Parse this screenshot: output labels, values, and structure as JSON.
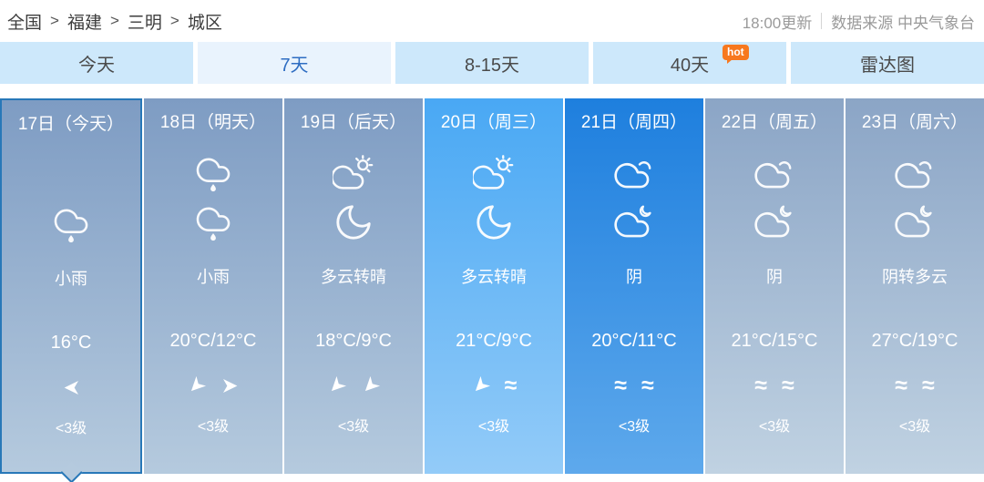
{
  "breadcrumb": {
    "items": [
      "全国",
      "福建",
      "三明",
      "城区"
    ],
    "separator": ">"
  },
  "meta": {
    "update_time": "18:00更新",
    "source": "数据来源 中央气象台"
  },
  "tabs": [
    {
      "label": "今天"
    },
    {
      "label": "7天",
      "selected": true
    },
    {
      "label": "8-15天"
    },
    {
      "label": "40天",
      "badge": "hot"
    },
    {
      "label": "雷达图"
    }
  ],
  "forecast": {
    "days": [
      {
        "date": "17日（今天）",
        "day_icon": null,
        "night_icon": "rain",
        "desc": "小雨",
        "temp": "16°C",
        "wind_icons": [
          {
            "type": "arrow",
            "rotation": 180
          }
        ],
        "wind_level": "<3级",
        "theme": "steel",
        "selected": true
      },
      {
        "date": "18日（明天）",
        "day_icon": "rain",
        "night_icon": "rain",
        "desc": "小雨",
        "temp": "20°C/12°C",
        "wind_icons": [
          {
            "type": "arrow",
            "rotation": 135
          },
          {
            "type": "arrow",
            "rotation": 0
          }
        ],
        "wind_level": "<3级",
        "theme": "steel",
        "selected": false
      },
      {
        "date": "19日（后天）",
        "day_icon": "sun-cloud",
        "night_icon": "moon",
        "desc": "多云转晴",
        "temp": "18°C/9°C",
        "wind_icons": [
          {
            "type": "arrow",
            "rotation": 135
          },
          {
            "type": "arrow",
            "rotation": 135
          }
        ],
        "wind_level": "<3级",
        "theme": "steel",
        "selected": false
      },
      {
        "date": "20日（周三）",
        "day_icon": "sun-cloud",
        "night_icon": "moon",
        "desc": "多云转晴",
        "temp": "21°C/9°C",
        "wind_icons": [
          {
            "type": "arrow",
            "rotation": 135
          },
          {
            "type": "wave"
          }
        ],
        "wind_level": "<3级",
        "theme": "sky",
        "selected": false
      },
      {
        "date": "21日（周四）",
        "day_icon": "cloud",
        "night_icon": "moon-cloud",
        "desc": "阴",
        "temp": "20°C/11°C",
        "wind_icons": [
          {
            "type": "wave"
          },
          {
            "type": "wave"
          }
        ],
        "wind_level": "<3级",
        "theme": "deep",
        "selected": false
      },
      {
        "date": "22日（周五）",
        "day_icon": "cloud",
        "night_icon": "moon-cloud",
        "desc": "阴",
        "temp": "21°C/15°C",
        "wind_icons": [
          {
            "type": "wave"
          },
          {
            "type": "wave"
          }
        ],
        "wind_level": "<3级",
        "theme": "steel-light",
        "selected": false
      },
      {
        "date": "23日（周六）",
        "day_icon": "cloud",
        "night_icon": "moon-cloud",
        "desc": "阴转多云",
        "temp": "27°C/19°C",
        "wind_icons": [
          {
            "type": "wave"
          },
          {
            "type": "wave"
          }
        ],
        "wind_level": "<3级",
        "theme": "steel-light",
        "selected": false
      }
    ]
  },
  "colors": {
    "tab_bg": "#cde8fb",
    "tab_selected_bg": "#e9f3fd",
    "tab_selected_text": "#2e6dc2",
    "hot_badge": "#f7781e",
    "selected_day_border": "#2878b8",
    "highlight_day_top": "#49a8f4",
    "deep_day_top": "#1e7fde",
    "normal_day_top": "#7e9cc3"
  }
}
